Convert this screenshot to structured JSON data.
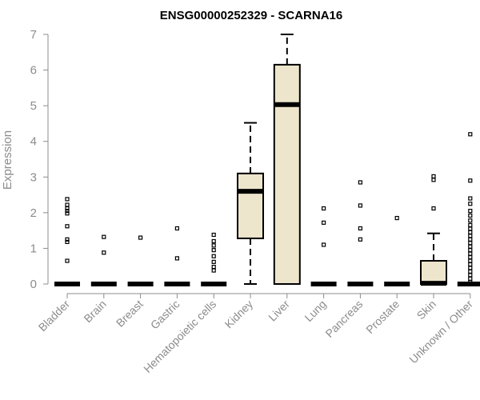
{
  "chart_data": {
    "type": "boxplot",
    "title": "ENSG00000252329 - SCARNA16",
    "xlabel": "",
    "ylabel": "Expression",
    "ylim": [
      0,
      7
    ],
    "yticks": [
      0,
      1,
      2,
      3,
      4,
      5,
      6,
      7
    ],
    "grid": false,
    "box_fill": "#ede5cc",
    "box_stroke": "#000000",
    "categories": [
      "Bladder",
      "Brain",
      "Breast",
      "Gastric",
      "Hematopoietic cells",
      "Kidney",
      "Liver",
      "Lung",
      "Pancreas",
      "Prostate",
      "Skin",
      "Unknown / Other"
    ],
    "boxes": [
      {
        "category": "Bladder",
        "q1": 0,
        "median": 0,
        "q3": 0,
        "whisker_low": 0,
        "whisker_high": 0,
        "outliers": [
          0.65,
          1.18,
          1.25,
          1.62,
          1.98,
          2.05,
          2.12,
          2.22,
          2.38
        ]
      },
      {
        "category": "Brain",
        "q1": 0,
        "median": 0,
        "q3": 0,
        "whisker_low": 0,
        "whisker_high": 0,
        "outliers": [
          0.88,
          1.32
        ]
      },
      {
        "category": "Breast",
        "q1": 0,
        "median": 0,
        "q3": 0,
        "whisker_low": 0,
        "whisker_high": 0,
        "outliers": [
          1.3
        ]
      },
      {
        "category": "Gastric",
        "q1": 0,
        "median": 0,
        "q3": 0,
        "whisker_low": 0,
        "whisker_high": 0,
        "outliers": [
          0.72,
          1.56
        ]
      },
      {
        "category": "Hematopoietic cells",
        "q1": 0,
        "median": 0,
        "q3": 0,
        "whisker_low": 0,
        "whisker_high": 0,
        "outliers": [
          0.38,
          0.48,
          0.62,
          0.78,
          0.95,
          1.08,
          1.2,
          1.38
        ]
      },
      {
        "category": "Kidney",
        "q1": 1.28,
        "median": 2.6,
        "q3": 3.1,
        "whisker_low": 0,
        "whisker_high": 4.52,
        "outliers": []
      },
      {
        "category": "Liver",
        "q1": 0,
        "median": 5.03,
        "q3": 6.15,
        "whisker_low": 0,
        "whisker_high": 7.0,
        "outliers": []
      },
      {
        "category": "Lung",
        "q1": 0,
        "median": 0,
        "q3": 0,
        "whisker_low": 0,
        "whisker_high": 0,
        "outliers": [
          1.1,
          1.72,
          2.12
        ]
      },
      {
        "category": "Pancreas",
        "q1": 0,
        "median": 0,
        "q3": 0,
        "whisker_low": 0,
        "whisker_high": 0,
        "outliers": [
          1.25,
          1.56,
          2.2,
          2.85
        ]
      },
      {
        "category": "Prostate",
        "q1": 0,
        "median": 0,
        "q3": 0,
        "whisker_low": 0,
        "whisker_high": 0,
        "outliers": [
          1.85
        ]
      },
      {
        "category": "Skin",
        "q1": 0,
        "median": 0.02,
        "q3": 0.65,
        "whisker_low": 0,
        "whisker_high": 1.42,
        "outliers": [
          2.12,
          2.92,
          3.02
        ]
      },
      {
        "category": "Unknown / Other",
        "q1": 0,
        "median": 0,
        "q3": 0,
        "whisker_low": 0,
        "whisker_high": 0,
        "outliers": [
          0.05,
          0.15,
          0.25,
          0.35,
          0.45,
          0.55,
          0.65,
          0.75,
          0.85,
          0.95,
          1.05,
          1.15,
          1.25,
          1.35,
          1.45,
          1.55,
          1.65,
          1.78,
          1.92,
          2.05,
          2.25,
          2.4,
          2.9,
          4.2
        ]
      }
    ]
  }
}
